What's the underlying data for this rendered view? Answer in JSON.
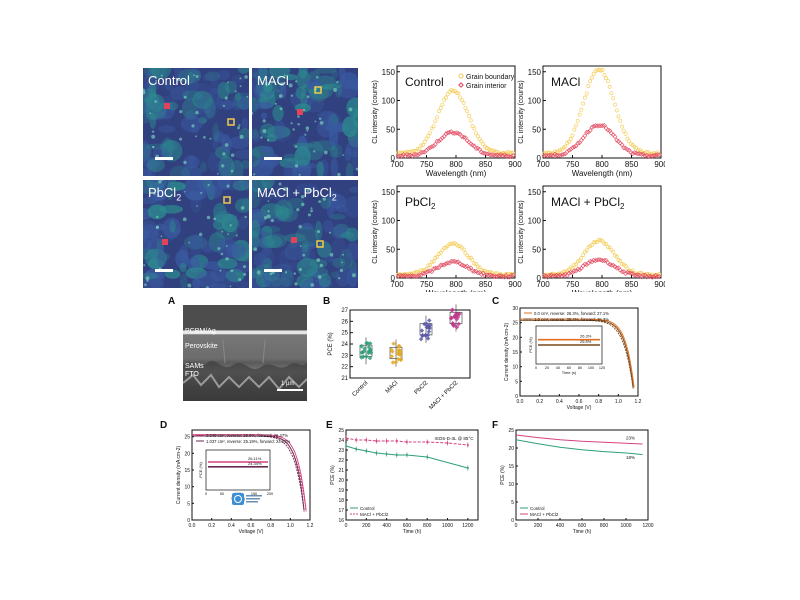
{
  "cl_maps": [
    {
      "label": "Control"
    },
    {
      "label": "MACl"
    },
    {
      "label": "PbCl",
      "sub": "2"
    },
    {
      "label": "MACl + PbCl",
      "sub": "2"
    }
  ],
  "cl_spectra": {
    "xlabel": "Wavelength (nm)",
    "ylabel": "CL intensity (counts)",
    "xticks": [
      "700",
      "750",
      "800",
      "850",
      "900"
    ],
    "yticks": [
      "0",
      "50",
      "100",
      "150"
    ],
    "legend": [
      "Grain boundary",
      "Grain interior"
    ],
    "colors": {
      "boundary": "#f2c94c",
      "interior": "#e0435a"
    }
  },
  "chart_data": [
    {
      "type": "scatter",
      "title": "Control",
      "xlim": [
        700,
        900
      ],
      "ylim": [
        0,
        160
      ],
      "series": [
        {
          "name": "Grain boundary",
          "peak_x": 795,
          "peak_y": 118,
          "base_y": 8
        },
        {
          "name": "Grain interior",
          "peak_x": 795,
          "peak_y": 45,
          "base_y": 4
        }
      ]
    },
    {
      "type": "scatter",
      "title": "MACl",
      "xlim": [
        700,
        900
      ],
      "ylim": [
        0,
        160
      ],
      "series": [
        {
          "name": "Grain boundary",
          "peak_x": 795,
          "peak_y": 155,
          "base_y": 8
        },
        {
          "name": "Grain interior",
          "peak_x": 795,
          "peak_y": 58,
          "base_y": 4
        }
      ]
    },
    {
      "type": "scatter",
      "title": "PbCl2",
      "xlim": [
        700,
        900
      ],
      "ylim": [
        0,
        160
      ],
      "series": [
        {
          "name": "Grain boundary",
          "peak_x": 795,
          "peak_y": 60,
          "base_y": 6
        },
        {
          "name": "Grain interior",
          "peak_x": 795,
          "peak_y": 28,
          "base_y": 3
        }
      ]
    },
    {
      "type": "scatter",
      "title": "MACl + PbCl2",
      "xlim": [
        700,
        900
      ],
      "ylim": [
        0,
        160
      ],
      "series": [
        {
          "name": "Grain boundary",
          "peak_x": 795,
          "peak_y": 65,
          "base_y": 6
        },
        {
          "name": "Grain interior",
          "peak_x": 795,
          "peak_y": 32,
          "base_y": 3
        }
      ]
    }
  ],
  "panel_a": {
    "letter": "A",
    "layers": [
      "PCBM/Ag",
      "Perovskite",
      "SAMs",
      "FTO"
    ],
    "scale": "1 µm"
  },
  "panel_b": {
    "letter": "B",
    "ylabel": "PCE (%)",
    "yticks": [
      "21",
      "22",
      "23",
      "24",
      "25",
      "26",
      "27"
    ],
    "ylim": [
      21,
      27
    ],
    "categories": [
      "Control",
      "MACl",
      "PbCl2",
      "MACl + PbCl2"
    ],
    "means": [
      23.4,
      23.2,
      25.3,
      26.3
    ],
    "colors": [
      "#2f9e7a",
      "#e0a826",
      "#5b57a6",
      "#c2378d"
    ]
  },
  "panel_c": {
    "letter": "C",
    "xlabel": "Voltage (V)",
    "ylabel": "Current density (mA cm-2)",
    "xticks": [
      "0.0",
      "0.2",
      "0.4",
      "0.6",
      "0.8",
      "1.0",
      "1.2"
    ],
    "yticks": [
      "0",
      "5",
      "10",
      "15",
      "20",
      "25",
      "30"
    ],
    "legend": [
      "0.0 cm², reverse: 26.3%, forward: 27.1%",
      "1.0 cm², reverse: 25.4%, forward: 25.3%"
    ],
    "inset_labels": [
      "26.3%",
      "25.5%"
    ],
    "inset_xlabel": "Time (s)",
    "inset_ylabel": "PCE (%)",
    "inset_xticks": [
      "0",
      "20",
      "40",
      "60",
      "80",
      "100",
      "120"
    ]
  },
  "panel_d": {
    "letter": "D",
    "xlabel": "Voltage (V)",
    "ylabel": "Current density (mA cm-2)",
    "xticks": [
      "0.0",
      "0.2",
      "0.4",
      "0.6",
      "0.8",
      "1.0",
      "1.2"
    ],
    "yticks": [
      "0",
      "5",
      "10",
      "15",
      "20",
      "25"
    ],
    "legend": [
      "0.049 cm², reverse: 26.0%, forward: 26.47%",
      "1.037 cm², reverse: 25.19%, forward: 24.27%"
    ],
    "inset_labels": [
      "26.11%",
      "24.34%"
    ],
    "inset_xlabel": "Time (s)",
    "inset_ylabel": "PCE (%)",
    "inset_xticks": [
      "0",
      "50",
      "100",
      "150",
      "200"
    ]
  },
  "panel_e": {
    "letter": "E",
    "annotation": "ISOS-D-3L @ 85°C",
    "xlabel": "Time (h)",
    "ylabel": "PCE (%)",
    "xticks": [
      "0",
      "200",
      "400",
      "600",
      "800",
      "1000",
      "1200"
    ],
    "yticks": [
      "16",
      "17",
      "18",
      "19",
      "20",
      "21",
      "22",
      "23",
      "24",
      "25"
    ],
    "legend": [
      "Control",
      "MACl + PbCl2"
    ],
    "series": [
      {
        "name": "Control",
        "x": [
          0,
          100,
          200,
          300,
          400,
          500,
          600,
          800,
          1200
        ],
        "y": [
          23.4,
          23.1,
          22.9,
          22.7,
          22.6,
          22.5,
          22.5,
          22.3,
          21.2
        ],
        "color": "#2f9e7a"
      },
      {
        "name": "MACl + PbCl2",
        "x": [
          0,
          100,
          200,
          300,
          400,
          500,
          600,
          800,
          1000,
          1200
        ],
        "y": [
          24.2,
          24.0,
          24.0,
          23.9,
          23.9,
          23.9,
          23.8,
          23.8,
          23.7,
          23.5
        ],
        "color": "#d6407f"
      }
    ],
    "xlim": [
      0,
      1300
    ],
    "ylim": [
      16,
      25
    ]
  },
  "panel_f": {
    "letter": "F",
    "xlabel": "Time (h)",
    "ylabel": "PCE (%)",
    "xticks": [
      "0",
      "200",
      "400",
      "600",
      "800",
      "1000",
      "1200"
    ],
    "yticks": [
      "0",
      "5",
      "10",
      "15",
      "20",
      "25"
    ],
    "legend": [
      "Control",
      "MACl + PbCl2"
    ],
    "end_labels": [
      "23%",
      "18%"
    ],
    "series": [
      {
        "name": "Control",
        "x": [
          0,
          200,
          400,
          600,
          800,
          1000,
          1150
        ],
        "y": [
          22.3,
          21.2,
          20.2,
          19.5,
          19.0,
          18.6,
          18.2
        ],
        "color": "#2f9e7a"
      },
      {
        "name": "MACl + PbCl2",
        "x": [
          0,
          200,
          400,
          600,
          800,
          1000,
          1150
        ],
        "y": [
          23.6,
          22.9,
          22.3,
          21.9,
          21.6,
          21.3,
          21.1
        ],
        "color": "#d6407f"
      }
    ],
    "xlim": [
      0,
      1200
    ],
    "ylim": [
      0,
      25
    ]
  }
}
